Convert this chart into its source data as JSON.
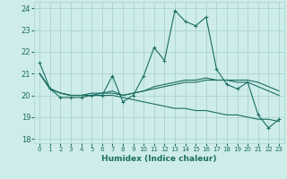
{
  "xlabel": "Humidex (Indice chaleur)",
  "background_color": "#ceecea",
  "grid_color": "#aad4d0",
  "line_color": "#1a6e62",
  "xlim": [
    -0.5,
    23.5
  ],
  "ylim": [
    17.8,
    24.3
  ],
  "yticks": [
    18,
    19,
    20,
    21,
    22,
    23,
    24
  ],
  "xticks": [
    0,
    1,
    2,
    3,
    4,
    5,
    6,
    7,
    8,
    9,
    10,
    11,
    12,
    13,
    14,
    15,
    16,
    17,
    18,
    19,
    20,
    21,
    22,
    23
  ],
  "series": [
    [
      21.5,
      20.3,
      19.9,
      19.9,
      19.9,
      20.0,
      20.0,
      20.9,
      19.7,
      20.0,
      20.9,
      22.2,
      21.6,
      23.9,
      23.4,
      23.2,
      23.6,
      21.2,
      20.5,
      20.3,
      20.6,
      19.1,
      18.5,
      18.9
    ],
    [
      21.0,
      20.3,
      20.1,
      20.0,
      20.0,
      20.0,
      20.1,
      20.1,
      20.0,
      20.1,
      20.2,
      20.3,
      20.4,
      20.5,
      20.6,
      20.6,
      20.7,
      20.7,
      20.7,
      20.7,
      20.7,
      20.6,
      20.4,
      20.2
    ],
    [
      21.0,
      20.3,
      20.1,
      20.0,
      20.0,
      20.1,
      20.1,
      20.2,
      20.0,
      20.1,
      20.2,
      20.4,
      20.5,
      20.6,
      20.7,
      20.7,
      20.8,
      20.7,
      20.7,
      20.6,
      20.6,
      20.4,
      20.2,
      20.0
    ],
    [
      21.0,
      20.3,
      20.1,
      20.0,
      20.0,
      20.0,
      20.0,
      20.0,
      19.9,
      19.8,
      19.7,
      19.6,
      19.5,
      19.4,
      19.4,
      19.3,
      19.3,
      19.2,
      19.1,
      19.1,
      19.0,
      18.9,
      18.9,
      18.8
    ]
  ]
}
